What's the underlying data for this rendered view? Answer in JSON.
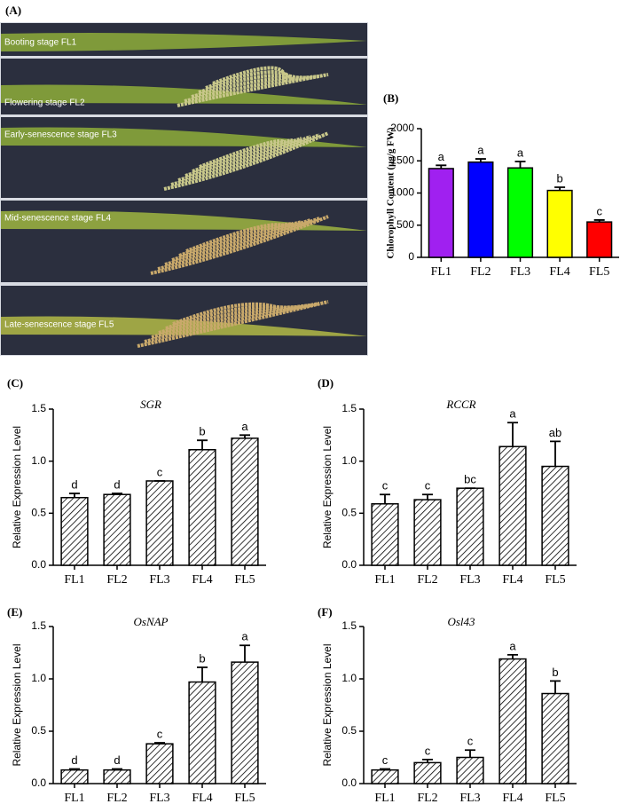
{
  "photo_panel": {
    "label": "(A)",
    "captions": [
      "Booting stage FL1",
      "Flowering stage FL2",
      "Early-senescence stage FL3",
      "Mid-senescence stage FL4",
      "Late-senescence stage FL5"
    ]
  },
  "chart_data": [
    {
      "type": "bar",
      "panel": "(B)",
      "y_label": "Chlorophyll Content (μg/g FW)",
      "categories": [
        "FL1",
        "FL2",
        "FL3",
        "FL4",
        "FL5"
      ],
      "values": [
        1380,
        1480,
        1390,
        1040,
        550
      ],
      "errors": [
        50,
        50,
        100,
        50,
        30
      ],
      "annotations": [
        "a",
        "a",
        "a",
        "b",
        "c"
      ],
      "colors": [
        "#a020f0",
        "#0000ff",
        "#00ff00",
        "#ffff00",
        "#ff0000"
      ],
      "ylim": [
        0,
        2000
      ],
      "yticks": [
        0,
        500,
        1000,
        1500,
        2000
      ]
    },
    {
      "type": "bar",
      "panel": "(C)",
      "title": "SGR",
      "y_label": "Relative Expression Level",
      "categories": [
        "FL1",
        "FL2",
        "FL3",
        "FL4",
        "FL5"
      ],
      "values": [
        0.65,
        0.68,
        0.81,
        1.11,
        1.22
      ],
      "errors": [
        0.04,
        0.01,
        0,
        0.09,
        0.03
      ],
      "annotations": [
        "d",
        "d",
        "c",
        "b",
        "a"
      ],
      "pattern": "hatch",
      "ylim": [
        0,
        1.5
      ],
      "yticks": [
        {
          "value": 0,
          "label": "0.0"
        },
        {
          "value": 0.5,
          "label": "0.5"
        },
        {
          "value": 1,
          "label": "1.0"
        },
        {
          "value": 1.5,
          "label": "1.5"
        }
      ]
    },
    {
      "type": "bar",
      "panel": "(D)",
      "title": "RCCR",
      "y_label": "Relative Expression Level",
      "categories": [
        "FL1",
        "FL2",
        "FL3",
        "FL4",
        "FL5"
      ],
      "values": [
        0.59,
        0.63,
        0.74,
        1.14,
        0.95
      ],
      "errors": [
        0.09,
        0.05,
        0,
        0.23,
        0.24
      ],
      "annotations": [
        "c",
        "c",
        "bc",
        "a",
        "ab"
      ],
      "pattern": "hatch",
      "ylim": [
        0,
        1.5
      ],
      "yticks": [
        {
          "value": 0,
          "label": "0.0"
        },
        {
          "value": 0.5,
          "label": "0.5"
        },
        {
          "value": 1,
          "label": "1.0"
        },
        {
          "value": 1.5,
          "label": "1.5"
        }
      ]
    },
    {
      "type": "bar",
      "panel": "(E)",
      "title": "OsNAP",
      "y_label": "Relative Expression Level",
      "categories": [
        "FL1",
        "FL2",
        "FL3",
        "FL4",
        "FL5"
      ],
      "values": [
        0.13,
        0.13,
        0.38,
        0.97,
        1.16
      ],
      "errors": [
        0.01,
        0.01,
        0.01,
        0.14,
        0.16
      ],
      "annotations": [
        "d",
        "d",
        "c",
        "b",
        "a"
      ],
      "pattern": "hatch",
      "ylim": [
        0,
        1.5
      ],
      "yticks": [
        {
          "value": 0,
          "label": "0.0"
        },
        {
          "value": 0.5,
          "label": "0.5"
        },
        {
          "value": 1,
          "label": "1.0"
        },
        {
          "value": 1.5,
          "label": "1.5"
        }
      ]
    },
    {
      "type": "bar",
      "panel": "(F)",
      "title": "Osl43",
      "y_label": "Relative Expression Level",
      "categories": [
        "FL1",
        "FL2",
        "FL3",
        "FL4",
        "FL5"
      ],
      "values": [
        0.13,
        0.2,
        0.25,
        1.19,
        0.86
      ],
      "errors": [
        0.01,
        0.03,
        0.07,
        0.04,
        0.12
      ],
      "annotations": [
        "c",
        "c",
        "c",
        "a",
        "b"
      ],
      "pattern": "hatch",
      "ylim": [
        0,
        1.5
      ],
      "yticks": [
        {
          "value": 0,
          "label": "0.0"
        },
        {
          "value": 0.5,
          "label": "0.5"
        },
        {
          "value": 1,
          "label": "1.0"
        },
        {
          "value": 1.5,
          "label": "1.5"
        }
      ]
    }
  ]
}
